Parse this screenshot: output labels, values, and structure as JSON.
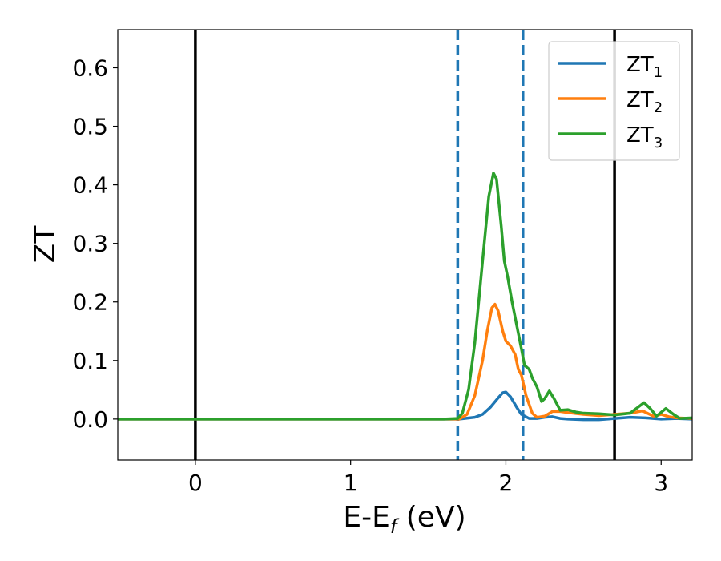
{
  "chart_data": {
    "type": "line",
    "xlabel_main": "E-E",
    "xlabel_sub": "f",
    "xlabel_unit": " (eV)",
    "ylabel": "ZT",
    "xlim": [
      -0.5,
      3.2
    ],
    "ylim": [
      -0.07,
      0.665
    ],
    "xticks": [
      0,
      1,
      2,
      3
    ],
    "xtick_labels": [
      "0",
      "1",
      "2",
      "3"
    ],
    "yticks": [
      0.0,
      0.1,
      0.2,
      0.3,
      0.4,
      0.5,
      0.6
    ],
    "ytick_labels": [
      "0.0",
      "0.1",
      "0.2",
      "0.3",
      "0.4",
      "0.5",
      "0.6"
    ],
    "legend_position": "top-right",
    "vertical_lines": [
      {
        "x": 0.0,
        "style": "solid",
        "color": "#000000"
      },
      {
        "x": 2.7,
        "style": "solid",
        "color": "#000000"
      },
      {
        "x": 1.69,
        "style": "dashed",
        "color": "#1f77b4"
      },
      {
        "x": 2.11,
        "style": "dashed",
        "color": "#1f77b4"
      }
    ],
    "series": [
      {
        "name_main": "ZT",
        "name_sub": "1",
        "color": "#1f77b4",
        "points": [
          [
            -0.5,
            0.0
          ],
          [
            1.6,
            0.0
          ],
          [
            1.7,
            0.0
          ],
          [
            1.8,
            0.003
          ],
          [
            1.85,
            0.008
          ],
          [
            1.9,
            0.02
          ],
          [
            1.95,
            0.036
          ],
          [
            1.98,
            0.045
          ],
          [
            2.0,
            0.046
          ],
          [
            2.03,
            0.038
          ],
          [
            2.07,
            0.02
          ],
          [
            2.1,
            0.008
          ],
          [
            2.15,
            0.001
          ],
          [
            2.2,
            0.001
          ],
          [
            2.25,
            0.003
          ],
          [
            2.3,
            0.004
          ],
          [
            2.35,
            0.001
          ],
          [
            2.4,
            0.0
          ],
          [
            2.5,
            -0.001
          ],
          [
            2.6,
            -0.001
          ],
          [
            2.7,
            0.001
          ],
          [
            2.8,
            0.003
          ],
          [
            2.9,
            0.002
          ],
          [
            3.0,
            0.0
          ],
          [
            3.1,
            0.001
          ],
          [
            3.2,
            0.0
          ]
        ]
      },
      {
        "name_main": "ZT",
        "name_sub": "2",
        "color": "#ff7f0e",
        "points": [
          [
            -0.5,
            0.0
          ],
          [
            1.6,
            0.0
          ],
          [
            1.7,
            0.0
          ],
          [
            1.75,
            0.008
          ],
          [
            1.8,
            0.04
          ],
          [
            1.85,
            0.1
          ],
          [
            1.88,
            0.15
          ],
          [
            1.91,
            0.19
          ],
          [
            1.93,
            0.196
          ],
          [
            1.95,
            0.185
          ],
          [
            1.98,
            0.15
          ],
          [
            2.0,
            0.133
          ],
          [
            2.03,
            0.125
          ],
          [
            2.06,
            0.11
          ],
          [
            2.08,
            0.085
          ],
          [
            2.1,
            0.075
          ],
          [
            2.13,
            0.04
          ],
          [
            2.17,
            0.01
          ],
          [
            2.2,
            0.003
          ],
          [
            2.25,
            0.005
          ],
          [
            2.3,
            0.013
          ],
          [
            2.35,
            0.013
          ],
          [
            2.4,
            0.011
          ],
          [
            2.5,
            0.008
          ],
          [
            2.6,
            0.006
          ],
          [
            2.7,
            0.008
          ],
          [
            2.8,
            0.01
          ],
          [
            2.88,
            0.014
          ],
          [
            2.95,
            0.005
          ],
          [
            3.0,
            0.008
          ],
          [
            3.05,
            0.004
          ],
          [
            3.1,
            0.002
          ],
          [
            3.2,
            0.001
          ]
        ]
      },
      {
        "name_main": "ZT",
        "name_sub": "3",
        "color": "#2ca02c",
        "points": [
          [
            -0.5,
            0.0
          ],
          [
            1.6,
            0.0
          ],
          [
            1.69,
            0.001
          ],
          [
            1.72,
            0.01
          ],
          [
            1.76,
            0.05
          ],
          [
            1.8,
            0.13
          ],
          [
            1.85,
            0.27
          ],
          [
            1.89,
            0.38
          ],
          [
            1.92,
            0.42
          ],
          [
            1.94,
            0.41
          ],
          [
            1.97,
            0.33
          ],
          [
            1.99,
            0.27
          ],
          [
            2.01,
            0.245
          ],
          [
            2.04,
            0.2
          ],
          [
            2.07,
            0.16
          ],
          [
            2.1,
            0.12
          ],
          [
            2.12,
            0.092
          ],
          [
            2.15,
            0.085
          ],
          [
            2.17,
            0.07
          ],
          [
            2.2,
            0.055
          ],
          [
            2.23,
            0.03
          ],
          [
            2.25,
            0.035
          ],
          [
            2.28,
            0.048
          ],
          [
            2.31,
            0.035
          ],
          [
            2.35,
            0.015
          ],
          [
            2.4,
            0.016
          ],
          [
            2.45,
            0.012
          ],
          [
            2.5,
            0.01
          ],
          [
            2.6,
            0.009
          ],
          [
            2.7,
            0.007
          ],
          [
            2.8,
            0.01
          ],
          [
            2.85,
            0.02
          ],
          [
            2.89,
            0.028
          ],
          [
            2.93,
            0.018
          ],
          [
            2.97,
            0.005
          ],
          [
            3.03,
            0.018
          ],
          [
            3.08,
            0.008
          ],
          [
            3.12,
            0.001
          ],
          [
            3.2,
            0.002
          ]
        ]
      }
    ]
  }
}
